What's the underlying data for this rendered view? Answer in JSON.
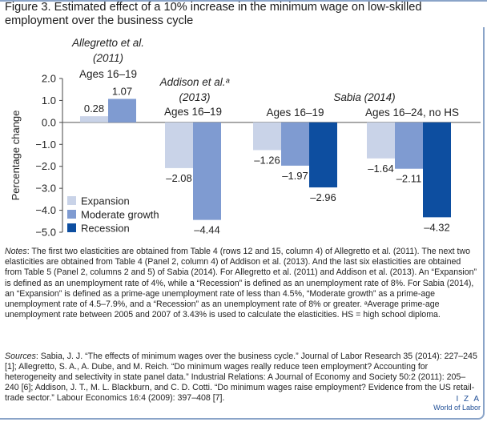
{
  "figure_title": "Figure 3. Estimated effect of a 10% increase in the minimum wage on low-skilled employment over the business cycle",
  "notes": {
    "label": "Notes",
    "text": ": The first two elasticities are obtained from Table 4 (rows 12 and 15, column 4) of Allegretto et al. (2011). The next two elasticities are obtained from Table 4 (Panel 2, column 4) of Addison et al. (2013). And the last six elasticities are obtained from Table 5 (Panel 2, columns 2 and 5) of Sabia (2014). For Allegretto et al. (2011) and Addison et al. (2013). An “Expansion” is defined as an unemployment rate of 4%, while a “Recession” is defined as an unemployment rate of 8%. For Sabia (2014), an “Expansion” is defined as a prime-age unemployment rate of less than 4.5%, “Moderate growth” as a prime-age unemployment rate of 4.5–7.9%, and a “Recession” as an unemployment rate of 8% or greater. ᵃAverage prime-age unemployment rate between 2005 and 2007 of 3.43% is used to calculate the elasticities. HS = high school diploma."
  },
  "sources": {
    "label": "Sources",
    "text": ": Sabia, J. J. “The effects of minimum wages over the business cycle.” Journal of Labor Research 35 (2014): 227–245 [1]; Allegretto, S. A., A. Dube, and M. Reich. “Do minimum wages really reduce teen employment? Accounting for heterogeneity and selectivity in state panel data.” Industrial Relations: A Journal of Economy and Society 50:2 (2011): 205–240 [6]; Addison, J. T., M. L. Blackburn, and C. D. Cotti. “Do minimum wages raise employment? Evidence from the US retail-trade sector.” Labour Economics 16:4 (2009): 397–408 [7]."
  },
  "logo": {
    "line1": "I Z A",
    "line2": "World of Labor"
  },
  "chart_data": {
    "type": "bar",
    "ylabel": "Percentage change",
    "ylim": [
      -5.0,
      2.0
    ],
    "yticks": [
      2.0,
      1.0,
      0.0,
      -1.0,
      -2.0,
      -3.0,
      -4.0,
      -5.0
    ],
    "grid": false,
    "legend_position": "bottom-left",
    "series": [
      {
        "name": "Expansion",
        "color": "#c9d3e8"
      },
      {
        "name": "Moderate growth",
        "color": "#7f9bd1"
      },
      {
        "name": "Recession",
        "color": "#0d4ea0"
      }
    ],
    "groups": [
      {
        "study": "Allegretto et al.",
        "study_year": "(2011)",
        "italic": true,
        "label": "Ages 16–19",
        "values": [
          0.28,
          1.07
        ]
      },
      {
        "study": "Addison et al.ᵃ",
        "study_year": "(2013)",
        "italic": true,
        "label": "Ages 16–19",
        "values": [
          -2.08,
          -4.44
        ]
      },
      {
        "study": "Sabia (2014)",
        "study_year": "",
        "italic": true,
        "label": "Ages 16–19",
        "values": [
          -1.26,
          -1.97,
          -2.96
        ]
      },
      {
        "study": "",
        "study_year": "",
        "italic": true,
        "label": "Ages 16–24, no HS",
        "values": [
          -1.64,
          -2.11,
          -4.32
        ]
      }
    ],
    "value_labels": [
      [
        "0.28",
        "1.07"
      ],
      [
        "–2.08",
        "–4.44"
      ],
      [
        "–1.26",
        "–1.97",
        "–2.96"
      ],
      [
        "–1.64",
        "–2.11",
        "–4.32"
      ]
    ],
    "ytick_labels": [
      "2.0",
      "1.0",
      "0.0",
      "−1.0",
      "−2.0",
      "−3.0",
      "−4.0",
      "−5.0"
    ]
  }
}
